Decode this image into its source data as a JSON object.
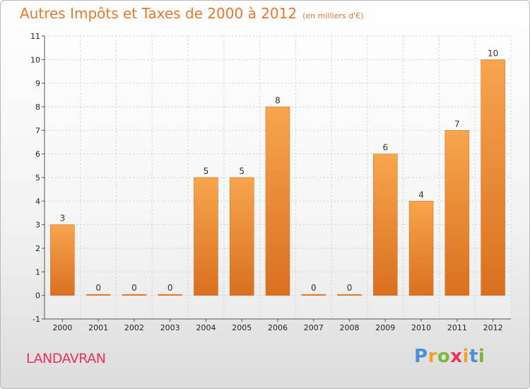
{
  "chart_data": {
    "type": "bar",
    "title": "Autres Impôts et Taxes de 2000 à 2012",
    "subtitle": "(en milliers d'€)",
    "categories": [
      "2000",
      "2001",
      "2002",
      "2003",
      "2004",
      "2005",
      "2006",
      "2007",
      "2008",
      "2009",
      "2010",
      "2011",
      "2012"
    ],
    "values": [
      3,
      0,
      0,
      0,
      5,
      5,
      8,
      0,
      0,
      6,
      4,
      7,
      10
    ],
    "value_labels": [
      "3",
      "0",
      "0",
      "0",
      "5",
      "5",
      "8",
      "0",
      "0",
      "6",
      "4",
      "7",
      "10"
    ],
    "yticks": [
      "-1",
      "0",
      "1",
      "2",
      "3",
      "4",
      "5",
      "6",
      "7",
      "8",
      "9",
      "10",
      "11"
    ],
    "ylim": [
      -1,
      11
    ],
    "xlabel": "",
    "ylabel": "",
    "grid": true,
    "bar_color": "#e8822e",
    "bar_highlight": "#f7a54e"
  },
  "commune": "LANDAVRAN",
  "brand": {
    "letters": [
      "P",
      "r",
      "o",
      "x",
      "i",
      "t",
      "i"
    ],
    "colors": [
      "#4a90d9",
      "#f2a02a",
      "#79b83a",
      "#e8345a",
      "#f2a02a",
      "#4a90d9",
      "#79b83a"
    ]
  }
}
